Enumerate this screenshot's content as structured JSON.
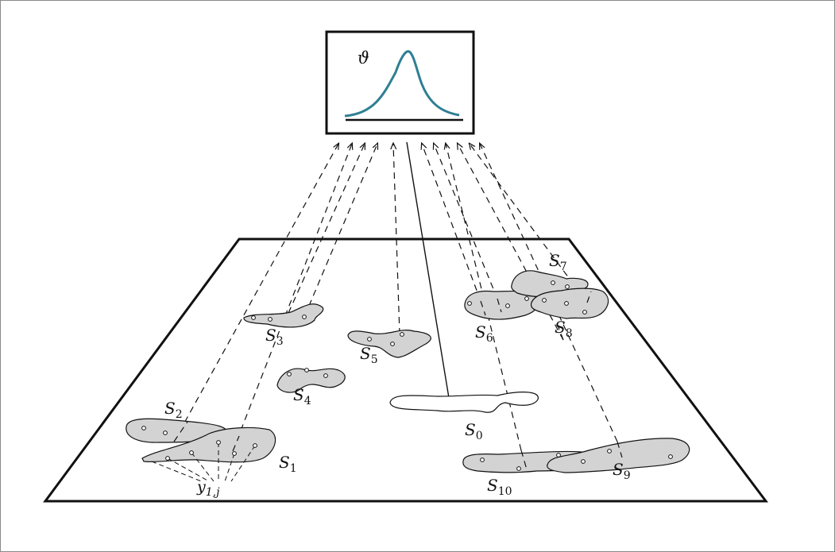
{
  "prior": {
    "symbol": "ϑ",
    "curve_color": "#2e7f93"
  },
  "regions": [
    {
      "id": "S1",
      "base": "S",
      "sub": "1"
    },
    {
      "id": "S2",
      "base": "S",
      "sub": "2"
    },
    {
      "id": "S3",
      "base": "S",
      "sub": "3"
    },
    {
      "id": "S4",
      "base": "S",
      "sub": "4"
    },
    {
      "id": "S5",
      "base": "S",
      "sub": "5"
    },
    {
      "id": "S6",
      "base": "S",
      "sub": "6"
    },
    {
      "id": "S7",
      "base": "S",
      "sub": "7"
    },
    {
      "id": "S8",
      "base": "S",
      "sub": "8"
    },
    {
      "id": "S9",
      "base": "S",
      "sub": "9"
    },
    {
      "id": "S10",
      "base": "S",
      "sub": "10"
    },
    {
      "id": "S0",
      "base": "S",
      "sub": "0"
    }
  ],
  "observation_label": {
    "base": "y",
    "sub": "1,j"
  },
  "colors": {
    "region_fill": "#d3d3d3",
    "target_fill": "#ffffff",
    "stroke": "#111111"
  }
}
